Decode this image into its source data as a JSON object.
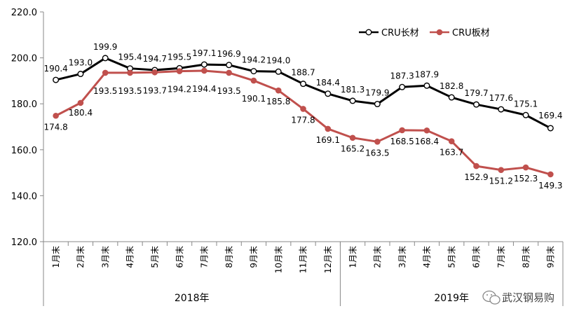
{
  "chart_data": {
    "type": "line",
    "categories": [
      "1月末",
      "2月末",
      "3月末",
      "4月末",
      "5月末",
      "6月末",
      "7月末",
      "8月末",
      "9月末",
      "10月末",
      "11月末",
      "12月末",
      "1月末",
      "2月末",
      "3月末",
      "4月末",
      "5月末",
      "6月末",
      "7月末",
      "8月末",
      "9月末"
    ],
    "year_groups": [
      {
        "label": "2018年",
        "count": 12
      },
      {
        "label": "2019年",
        "count": 9
      }
    ],
    "ylim": [
      120.0,
      220.0
    ],
    "yticks": [
      "120.0",
      "140.0",
      "160.0",
      "180.0",
      "200.0",
      "220.0"
    ],
    "grid": false,
    "legend": "top-right",
    "series": [
      {
        "name": "CRU长材",
        "color": "#000000",
        "marker": "open-circle",
        "values": [
          190.4,
          193.0,
          199.9,
          195.4,
          194.7,
          195.5,
          197.1,
          196.9,
          194.2,
          194.0,
          188.7,
          184.4,
          181.3,
          179.9,
          187.3,
          187.9,
          182.8,
          179.7,
          177.6,
          175.1,
          169.4
        ],
        "labels": [
          "190.4",
          "193.0",
          "199.9",
          "195.4",
          "194.7",
          "195.5",
          "197.1",
          "196.9",
          "194.2",
          "194.0",
          "188.7",
          "184.4",
          "181.3",
          "179.9",
          "187.3",
          "187.9",
          "182.8",
          "179.7",
          "177.6",
          "175.1",
          "169.4"
        ]
      },
      {
        "name": "CRU板材",
        "color": "#c0504d",
        "marker": "filled-circle",
        "values": [
          174.8,
          180.4,
          193.5,
          193.5,
          193.7,
          194.2,
          194.4,
          193.5,
          190.1,
          185.8,
          177.8,
          169.1,
          165.2,
          163.5,
          168.5,
          168.4,
          163.7,
          152.9,
          151.2,
          152.3,
          149.3
        ],
        "labels": [
          "174.8",
          "180.4",
          "193.5",
          "193.5",
          "193.7",
          "194.2",
          "194.4",
          "193.5",
          "190.1",
          "185.8",
          "177.8",
          "169.1",
          "165.2",
          "163.5",
          "168.5",
          "168.4",
          "163.7",
          "152.9",
          "151.2",
          "152.3",
          "149.3"
        ]
      }
    ]
  },
  "watermark": {
    "text": "武汉钢易购",
    "icon": "wechat-icon"
  }
}
